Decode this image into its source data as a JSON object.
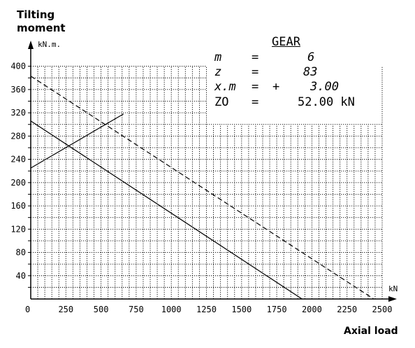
{
  "chart_data": {
    "type": "line",
    "ylabel_line1": "Tilting",
    "ylabel_line2": "moment",
    "ylabel_unit": "kN.m.",
    "xlabel": "Axial load",
    "xlabel_unit": "kN",
    "xlim": [
      0,
      2500
    ],
    "ylim": [
      0,
      420
    ],
    "xticks": [
      "0",
      "250",
      "500",
      "750",
      "1000",
      "1250",
      "1500",
      "1750",
      "2000",
      "2250",
      "2500"
    ],
    "yticks": [
      "40",
      "80",
      "120",
      "160",
      "200",
      "240",
      "280",
      "320",
      "360",
      "400"
    ],
    "grid": true,
    "series": [
      {
        "style": "solid",
        "x": [
          0,
          1930
        ],
        "y": [
          306,
          0
        ]
      },
      {
        "style": "dashed",
        "x": [
          0,
          2440
        ],
        "y": [
          383,
          0
        ]
      },
      {
        "style": "solid",
        "x": [
          0,
          660
        ],
        "y": [
          225,
          318
        ]
      }
    ]
  },
  "gear": {
    "title": "GEAR",
    "rows": [
      {
        "label": "m",
        "eq": "=",
        "sign": "",
        "value": "6"
      },
      {
        "label": "z",
        "eq": "=",
        "sign": "",
        "value": "83"
      },
      {
        "label": "x.m",
        "eq": "=",
        "sign": "+",
        "value": "3.00"
      },
      {
        "label": "ZO",
        "eq": "=",
        "sign": "",
        "value": "52.00 kN"
      }
    ]
  }
}
